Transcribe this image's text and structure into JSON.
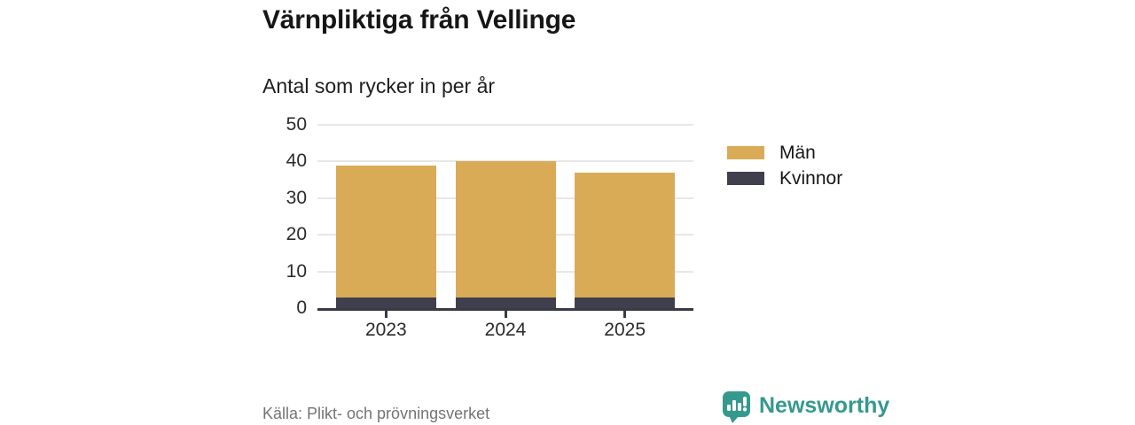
{
  "chart_data": {
    "type": "bar",
    "stacked": true,
    "title": "Värnpliktiga från Vellinge",
    "subtitle": "Antal som rycker in per år",
    "categories": [
      "2023",
      "2024",
      "2025"
    ],
    "series": [
      {
        "name": "Män",
        "color": "#d9ab57",
        "values": [
          36,
          37,
          34
        ]
      },
      {
        "name": "Kvinnor",
        "color": "#403f4e",
        "values": [
          3,
          3,
          3
        ]
      }
    ],
    "stack_order_bottom_to_top": [
      "Kvinnor",
      "Män"
    ],
    "totals": [
      39,
      40,
      37
    ],
    "ylim": [
      0,
      50
    ],
    "yticks": [
      0,
      10,
      20,
      30,
      40,
      50
    ],
    "grid": "horizontal",
    "legend_position": "right",
    "source": "Källa: Plikt- och prövningsverket"
  },
  "branding": {
    "logo_text": "Newsworthy",
    "brand_color": "#35998e"
  },
  "colors": {
    "axis": "#3a3a46",
    "gridline": "#e7e7e7",
    "title_text": "#161616",
    "source_text": "#747474",
    "background": "#ffffff"
  }
}
